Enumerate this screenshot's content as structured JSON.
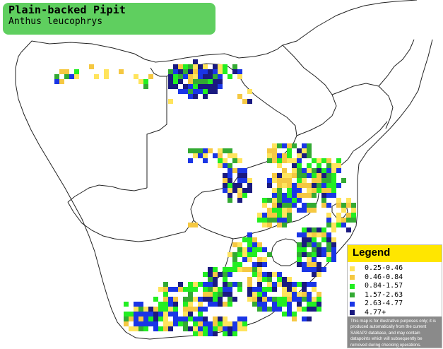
{
  "title": {
    "common_name": "Plain-backed Pipit",
    "scientific_name": "Anthus leucophrys",
    "background": "#5fcf5f"
  },
  "map": {
    "region": "southern Africa",
    "colors": {
      "c1": "#ffe45c",
      "c2": "#f5c842",
      "c3": "#22ee22",
      "c4": "#33aa33",
      "c5": "#1a35e6",
      "c6": "#1a1a80"
    }
  },
  "legend": {
    "title": "Legend",
    "items": [
      {
        "label": "0.25-0.46",
        "color": "#ffe45c"
      },
      {
        "label": "0.46-0.84",
        "color": "#f5c842"
      },
      {
        "label": "0.84-1.57",
        "color": "#22ee22"
      },
      {
        "label": "1.57-2.63",
        "color": "#33aa33"
      },
      {
        "label": "2.63-4.77",
        "color": "#1a35e6"
      },
      {
        "label": "4.77+",
        "color": "#1a1a80"
      }
    ],
    "disclaimer": "This map is for illustrative purposes only; it is produced automatically from the current SABAP2 database, and may contain datapoints which will subsequently be removed during checking operations."
  }
}
